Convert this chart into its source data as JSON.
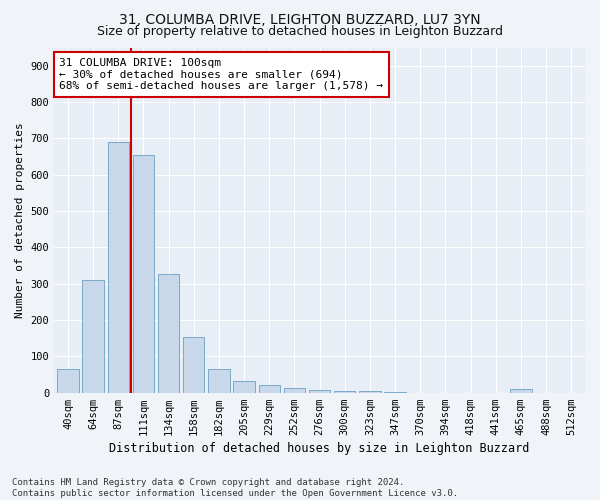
{
  "title_line1": "31, COLUMBA DRIVE, LEIGHTON BUZZARD, LU7 3YN",
  "title_line2": "Size of property relative to detached houses in Leighton Buzzard",
  "xlabel": "Distribution of detached houses by size in Leighton Buzzard",
  "ylabel": "Number of detached properties",
  "bins": [
    "40sqm",
    "64sqm",
    "87sqm",
    "111sqm",
    "134sqm",
    "158sqm",
    "182sqm",
    "205sqm",
    "229sqm",
    "252sqm",
    "276sqm",
    "300sqm",
    "323sqm",
    "347sqm",
    "370sqm",
    "394sqm",
    "418sqm",
    "441sqm",
    "465sqm",
    "488sqm",
    "512sqm"
  ],
  "values": [
    65,
    310,
    690,
    655,
    328,
    152,
    65,
    33,
    20,
    14,
    8,
    5,
    5,
    3,
    0,
    0,
    0,
    0,
    10,
    0,
    0
  ],
  "bar_color": "#c8d8ea",
  "bar_edge_color": "#7aaac8",
  "vline_color": "#cc0000",
  "annotation_line1": "31 COLUMBA DRIVE: 100sqm",
  "annotation_line2": "← 30% of detached houses are smaller (694)",
  "annotation_line3": "68% of semi-detached houses are larger (1,578) →",
  "annotation_box_color": "#ffffff",
  "annotation_box_edge_color": "#cc0000",
  "footnote_line1": "Contains HM Land Registry data © Crown copyright and database right 2024.",
  "footnote_line2": "Contains public sector information licensed under the Open Government Licence v3.0.",
  "fig_background_color": "#f0f4f8",
  "plot_background_color": "#e8eef5",
  "ylim": [
    0,
    950
  ],
  "yticks": [
    0,
    100,
    200,
    300,
    400,
    500,
    600,
    700,
    800,
    900
  ],
  "title_fontsize": 10,
  "subtitle_fontsize": 9,
  "xlabel_fontsize": 8.5,
  "ylabel_fontsize": 8,
  "tick_fontsize": 7.5,
  "annotation_fontsize": 8,
  "footnote_fontsize": 6.5,
  "vline_xindex": 2.5
}
